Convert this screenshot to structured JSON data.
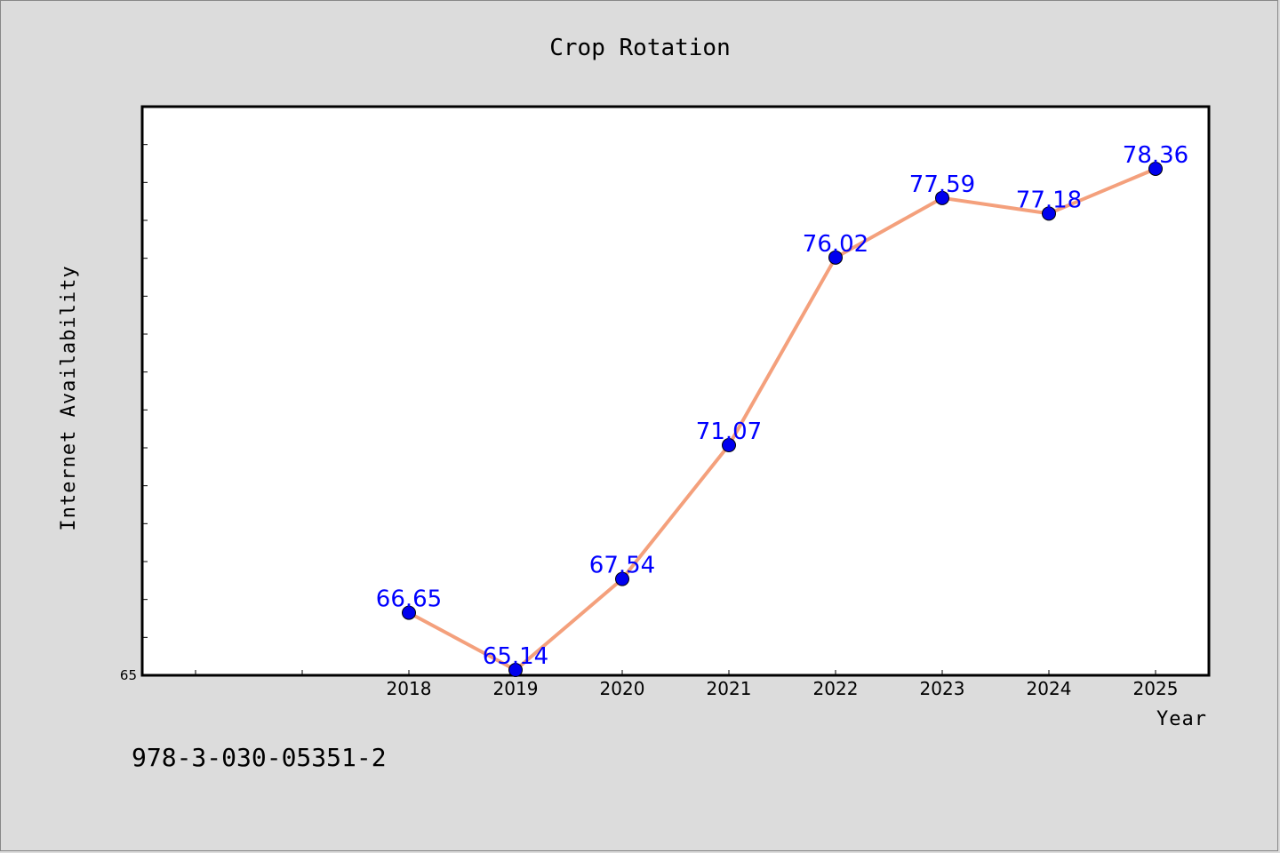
{
  "chart_data": {
    "type": "line",
    "title": "Crop Rotation",
    "xlabel": "Year",
    "ylabel": "Internet Availability",
    "x": [
      "2018",
      "2019",
      "2020",
      "2021",
      "2022",
      "2023",
      "2024",
      "2025"
    ],
    "series": [
      {
        "values": [
          66.65,
          65.14,
          67.54,
          71.07,
          76.02,
          77.59,
          77.18,
          78.36
        ]
      }
    ],
    "data_labels": [
      "66.65",
      "65.14",
      "67.54",
      "71.07",
      "76.02",
      "77.59",
      "77.18",
      "78.36"
    ],
    "ylim": [
      65,
      80
    ],
    "y_tick_labels": [
      "65"
    ],
    "grid": false,
    "line_color": "#f4a07c",
    "marker_color": "#0000ee",
    "label_color": "#0000ff"
  },
  "footer_text": "978-3-030-05351-2"
}
